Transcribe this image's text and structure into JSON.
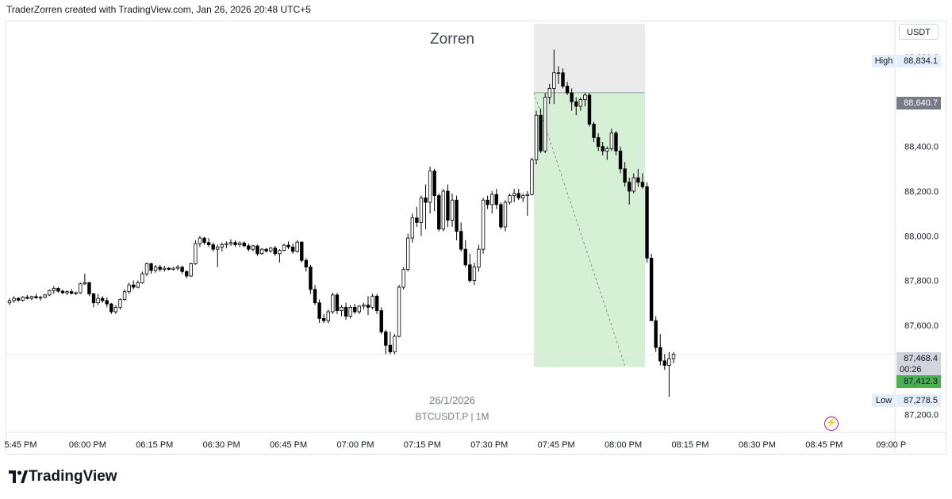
{
  "header": {
    "credit": "TraderZorren created with TradingView.com, Jan 26, 2026 20:48 UTC+5"
  },
  "colors": {
    "up_body": "#ffffff",
    "down_body": "#000000",
    "wick": "#000000",
    "profit_zone": "#d6f0d6",
    "risk_zone": "#ebebeb",
    "current_price_tag": "#4caf50",
    "high_low_label_bg": "#e3eefa"
  },
  "chart_data": {
    "type": "candlestick",
    "title": "Zorren",
    "symbol": "BTCUSDT.P | 1M",
    "date_watermark": "26/1/2026",
    "currency": "USDT",
    "interval_minutes": 1,
    "x_ticks": [
      "5:45 PM",
      "06:00 PM",
      "06:15 PM",
      "06:30 PM",
      "06:45 PM",
      "07:00 PM",
      "07:15 PM",
      "07:30 PM",
      "07:45 PM",
      "08:00 PM",
      "08:15 PM",
      "08:30 PM",
      "08:45 PM",
      "09:00 P"
    ],
    "y_ticks": [
      "88,800.0",
      "88,600.0",
      "88,400.0",
      "88,200.0",
      "88,000.0",
      "87,800.0",
      "87,600.0",
      "87,200.0"
    ],
    "y_tick_values": [
      88800,
      88600,
      88400,
      88200,
      88000,
      87800,
      87600,
      87200
    ],
    "ylim": [
      87120,
      88960
    ],
    "high": {
      "label": "High",
      "value": "88,834.1",
      "price": 88834.1
    },
    "low": {
      "label": "Low",
      "value": "87,278.5",
      "price": 87278.5
    },
    "entry_price": {
      "value": "88,640.7",
      "price": 88640.7
    },
    "last_price": {
      "value": "87,468.4",
      "price": 87468.4,
      "countdown": "00:26"
    },
    "target_price": {
      "value": "87,412.3",
      "price": 87412.3
    },
    "position": {
      "type": "short",
      "start_index": 119,
      "end_index": 143,
      "entry": 88640.7,
      "stop": 88950,
      "target": 87412.3
    },
    "candles": [
      [
        87700,
        87720,
        87690,
        87710
      ],
      [
        87710,
        87730,
        87700,
        87720
      ],
      [
        87720,
        87725,
        87705,
        87712
      ],
      [
        87712,
        87730,
        87705,
        87725
      ],
      [
        87725,
        87735,
        87715,
        87720
      ],
      [
        87720,
        87732,
        87712,
        87728
      ],
      [
        87728,
        87740,
        87718,
        87722
      ],
      [
        87722,
        87730,
        87710,
        87725
      ],
      [
        87725,
        87740,
        87720,
        87735
      ],
      [
        87735,
        87760,
        87730,
        87755
      ],
      [
        87755,
        87775,
        87740,
        87765
      ],
      [
        87765,
        87770,
        87745,
        87752
      ],
      [
        87752,
        87760,
        87740,
        87745
      ],
      [
        87745,
        87755,
        87735,
        87750
      ],
      [
        87750,
        87762,
        87738,
        87742
      ],
      [
        87742,
        87750,
        87735,
        87745
      ],
      [
        87745,
        87790,
        87740,
        87785
      ],
      [
        87785,
        87830,
        87780,
        87790
      ],
      [
        87790,
        87795,
        87730,
        87740
      ],
      [
        87740,
        87745,
        87680,
        87700
      ],
      [
        87700,
        87740,
        87690,
        87720
      ],
      [
        87720,
        87730,
        87700,
        87710
      ],
      [
        87710,
        87725,
        87680,
        87695
      ],
      [
        87695,
        87700,
        87650,
        87660
      ],
      [
        87660,
        87690,
        87650,
        87680
      ],
      [
        87680,
        87720,
        87670,
        87715
      ],
      [
        87715,
        87760,
        87710,
        87750
      ],
      [
        87750,
        87790,
        87740,
        87780
      ],
      [
        87780,
        87800,
        87760,
        87770
      ],
      [
        87770,
        87800,
        87765,
        87790
      ],
      [
        87790,
        87840,
        87785,
        87830
      ],
      [
        87830,
        87880,
        87820,
        87875
      ],
      [
        87875,
        87880,
        87830,
        87845
      ],
      [
        87845,
        87870,
        87835,
        87860
      ],
      [
        87860,
        87870,
        87840,
        87850
      ],
      [
        87850,
        87865,
        87840,
        87855
      ],
      [
        87855,
        87860,
        87845,
        87850
      ],
      [
        87850,
        87860,
        87845,
        87855
      ],
      [
        87855,
        87870,
        87845,
        87860
      ],
      [
        87860,
        87865,
        87830,
        87840
      ],
      [
        87840,
        87845,
        87810,
        87820
      ],
      [
        87820,
        87880,
        87815,
        87875
      ],
      [
        87875,
        87980,
        87870,
        87965
      ],
      [
        87965,
        88000,
        87950,
        87990
      ],
      [
        87990,
        87995,
        87960,
        87970
      ],
      [
        87970,
        87990,
        87950,
        87960
      ],
      [
        87960,
        87970,
        87930,
        87940
      ],
      [
        87940,
        87960,
        87860,
        87950
      ],
      [
        87950,
        87970,
        87930,
        87960
      ],
      [
        87960,
        87975,
        87945,
        87965
      ],
      [
        87965,
        87985,
        87955,
        87970
      ],
      [
        87970,
        87980,
        87950,
        87960
      ],
      [
        87960,
        87975,
        87950,
        87968
      ],
      [
        87968,
        87975,
        87950,
        87955
      ],
      [
        87955,
        87965,
        87930,
        87940
      ],
      [
        87940,
        87960,
        87930,
        87955
      ],
      [
        87955,
        87960,
        87910,
        87920
      ],
      [
        87920,
        87945,
        87915,
        87940
      ],
      [
        87940,
        87945,
        87925,
        87932
      ],
      [
        87932,
        87950,
        87925,
        87945
      ],
      [
        87945,
        87955,
        87910,
        87920
      ],
      [
        87920,
        87940,
        87880,
        87935
      ],
      [
        87935,
        87965,
        87930,
        87958
      ],
      [
        87958,
        87975,
        87940,
        87950
      ],
      [
        87950,
        87965,
        87920,
        87930
      ],
      [
        87930,
        87980,
        87925,
        87972
      ],
      [
        87972,
        87975,
        87880,
        87890
      ],
      [
        87890,
        87900,
        87840,
        87860
      ],
      [
        87860,
        87870,
        87740,
        87760
      ],
      [
        87760,
        87780,
        87690,
        87700
      ],
      [
        87700,
        87715,
        87610,
        87630
      ],
      [
        87630,
        87650,
        87610,
        87620
      ],
      [
        87620,
        87670,
        87610,
        87660
      ],
      [
        87660,
        87745,
        87650,
        87735
      ],
      [
        87735,
        87745,
        87650,
        87665
      ],
      [
        87665,
        87690,
        87640,
        87680
      ],
      [
        87680,
        87700,
        87625,
        87640
      ],
      [
        87640,
        87690,
        87630,
        87680
      ],
      [
        87680,
        87695,
        87650,
        87660
      ],
      [
        87660,
        87690,
        87650,
        87685
      ],
      [
        87685,
        87700,
        87670,
        87690
      ],
      [
        87690,
        87730,
        87645,
        87680
      ],
      [
        87680,
        87740,
        87670,
        87730
      ],
      [
        87730,
        87740,
        87650,
        87665
      ],
      [
        87665,
        87680,
        87560,
        87570
      ],
      [
        87570,
        87580,
        87470,
        87510
      ],
      [
        87510,
        87570,
        87470,
        87480
      ],
      [
        87480,
        87560,
        87470,
        87550
      ],
      [
        87550,
        87780,
        87545,
        87770
      ],
      [
        87770,
        87860,
        87760,
        87850
      ],
      [
        87850,
        88010,
        87840,
        87990
      ],
      [
        87990,
        88100,
        87970,
        88080
      ],
      [
        88080,
        88130,
        88040,
        88060
      ],
      [
        88060,
        88180,
        88000,
        88170
      ],
      [
        88170,
        88230,
        88030,
        88150
      ],
      [
        88150,
        88310,
        88100,
        88290
      ],
      [
        88290,
        88300,
        88110,
        88180
      ],
      [
        88180,
        88190,
        88020,
        88030
      ],
      [
        88030,
        88210,
        88020,
        88200
      ],
      [
        88200,
        88230,
        88040,
        88070
      ],
      [
        88070,
        88190,
        88040,
        88160
      ],
      [
        88160,
        88180,
        87980,
        88020
      ],
      [
        88020,
        88060,
        87930,
        87940
      ],
      [
        87940,
        87980,
        87860,
        87870
      ],
      [
        87870,
        87920,
        87790,
        87800
      ],
      [
        87800,
        87880,
        87780,
        87860
      ],
      [
        87860,
        87960,
        87840,
        87940
      ],
      [
        87940,
        88170,
        87920,
        88160
      ],
      [
        88160,
        88180,
        88120,
        88140
      ],
      [
        88140,
        88200,
        88100,
        88185
      ],
      [
        88185,
        88210,
        88120,
        88140
      ],
      [
        88140,
        88150,
        88030,
        88040
      ],
      [
        88040,
        88160,
        88020,
        88150
      ],
      [
        88150,
        88190,
        88140,
        88180
      ],
      [
        88180,
        88210,
        88150,
        88190
      ],
      [
        88190,
        88210,
        88160,
        88170
      ],
      [
        88170,
        88190,
        88150,
        88180
      ],
      [
        88180,
        88200,
        88090,
        88185
      ],
      [
        88185,
        88350,
        88180,
        88340
      ],
      [
        88340,
        88560,
        88320,
        88540
      ],
      [
        88540,
        88570,
        88370,
        88380
      ],
      [
        88380,
        88640,
        88370,
        88620
      ],
      [
        88620,
        88680,
        88590,
        88660
      ],
      [
        88660,
        88834.1,
        88590,
        88730
      ],
      [
        88730,
        88760,
        88680,
        88730
      ],
      [
        88730,
        88750,
        88660,
        88670
      ],
      [
        88670,
        88690,
        88630,
        88640
      ],
      [
        88640,
        88660,
        88560,
        88600
      ],
      [
        88600,
        88620,
        88540,
        88580
      ],
      [
        88580,
        88620,
        88560,
        88610
      ],
      [
        88610,
        88640,
        88580,
        88630
      ],
      [
        88630,
        88640,
        88490,
        88500
      ],
      [
        88500,
        88510,
        88420,
        88440
      ],
      [
        88440,
        88460,
        88380,
        88400
      ],
      [
        88400,
        88420,
        88360,
        88380
      ],
      [
        88380,
        88400,
        88340,
        88390
      ],
      [
        88390,
        88480,
        88380,
        88460
      ],
      [
        88460,
        88470,
        88360,
        88380
      ],
      [
        88380,
        88400,
        88280,
        88300
      ],
      [
        88300,
        88330,
        88220,
        88240
      ],
      [
        88240,
        88260,
        88140,
        88200
      ],
      [
        88200,
        88280,
        88190,
        88260
      ],
      [
        88260,
        88300,
        88220,
        88240
      ],
      [
        88240,
        88280,
        88210,
        88220
      ],
      [
        88220,
        88240,
        87880,
        87900
      ],
      [
        87900,
        87920,
        87620,
        87620
      ],
      [
        87620,
        87640,
        87480,
        87500
      ],
      [
        87500,
        87560,
        87420,
        87440
      ],
      [
        87440,
        87470,
        87400,
        87420
      ],
      [
        87420,
        87480,
        87278.5,
        87450
      ],
      [
        87450,
        87480,
        87430,
        87470
      ]
    ]
  },
  "brand": {
    "name": "TradingView"
  }
}
